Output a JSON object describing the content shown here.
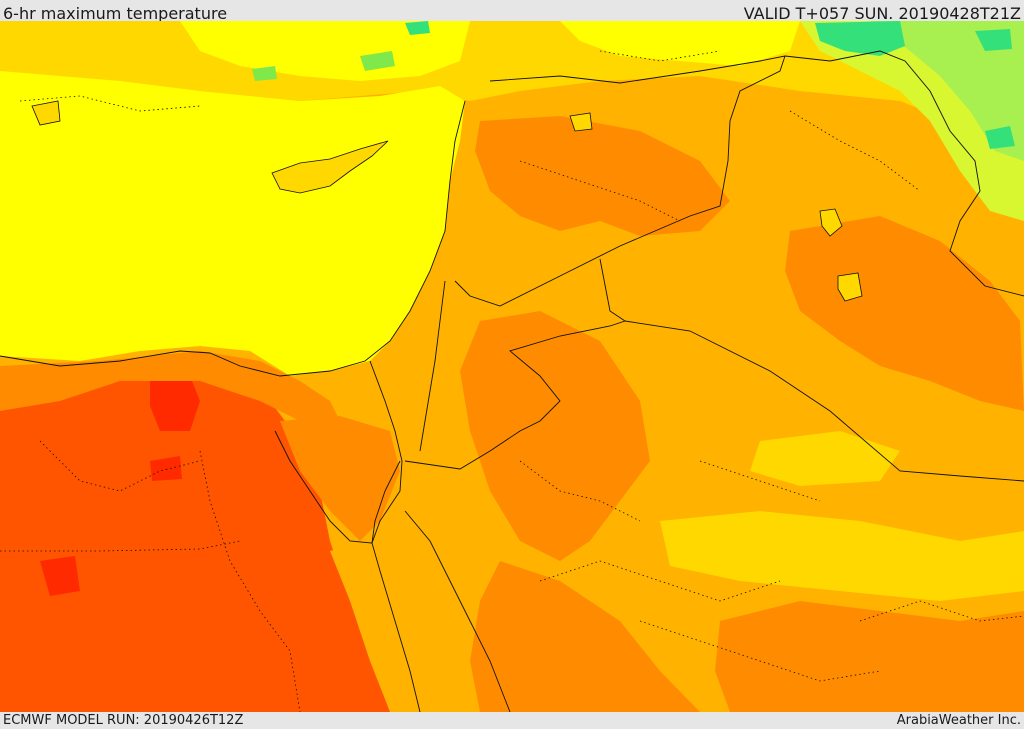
{
  "header": {
    "title": "6-hr maximum temperature",
    "valid": "VALID T+057 SUN. 20190428T21Z"
  },
  "footer": {
    "model_run": "ECMWF MODEL RUN: 20190426T12Z",
    "credit": "ArabiaWeather Inc."
  },
  "map": {
    "palette": {
      "green": "#33e07a",
      "light_green": "#a8ef50",
      "yellow_green": "#d8f730",
      "yellow": "#ffff00",
      "gold": "#ffd800",
      "orange_light": "#ffb300",
      "orange": "#ff8c00",
      "orange_red": "#ff5500",
      "red": "#ff2a00",
      "border": "#111111"
    }
  }
}
